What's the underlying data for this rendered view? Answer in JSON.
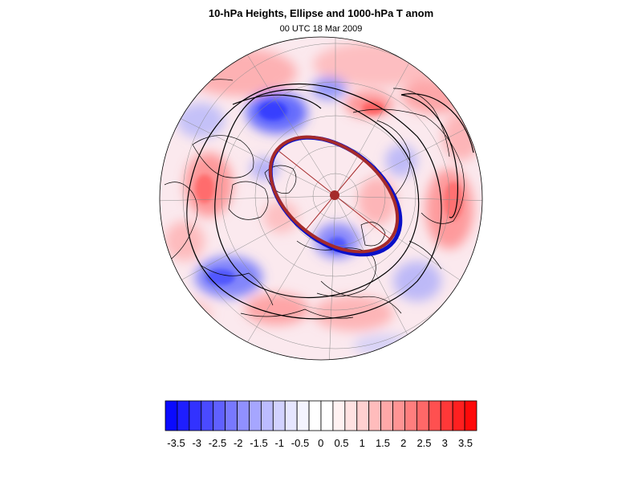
{
  "title": "10-hPa Heights, Ellipse and 1000-hPa T anom",
  "subtitle": "00 UTC 18 Mar 2009",
  "colors": {
    "ellipse_red": "#a52a2a",
    "ellipse_blue": "#0a10c8",
    "contour": "#000000",
    "coast": "#000000",
    "grid": "#8c8c8c"
  },
  "colorbar": {
    "labels": [
      "-3.5",
      "-3",
      "-2.5",
      "-2",
      "-1.5",
      "-1",
      "-0.5",
      "0",
      "0.5",
      "1",
      "1.5",
      "2",
      "2.5",
      "3",
      "3.5"
    ],
    "colors": [
      "#0a0aff",
      "#1e1eff",
      "#3232ff",
      "#4a4aff",
      "#6060ff",
      "#7878ff",
      "#9090ff",
      "#a6a6ff",
      "#bcbcff",
      "#d2d2ff",
      "#e6e6ff",
      "#f4f4ff",
      "#ffffff",
      "#ffffff",
      "#fff2f2",
      "#ffe2e2",
      "#ffd0d0",
      "#ffbcbc",
      "#ffa8a8",
      "#ff9494",
      "#ff7e7e",
      "#ff6868",
      "#ff5050",
      "#ff3838",
      "#ff2020",
      "#ff0a0a"
    ]
  }
}
